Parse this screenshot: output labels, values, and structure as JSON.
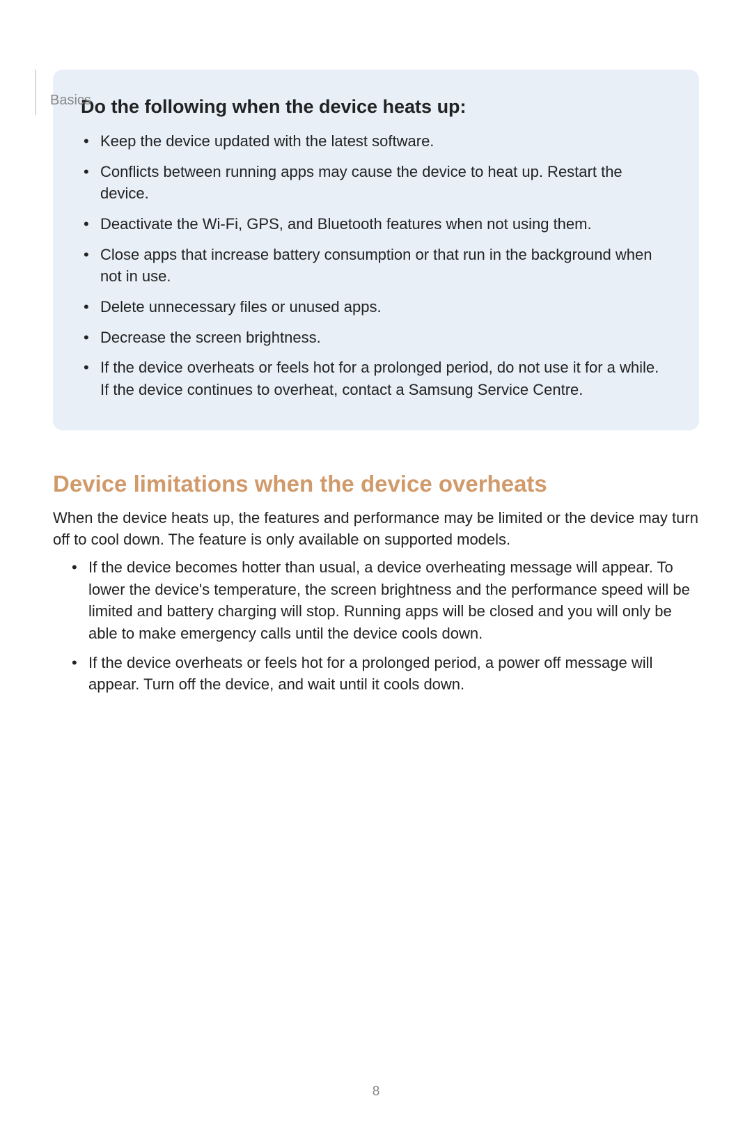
{
  "header": {
    "breadcrumb": "Basics"
  },
  "callout": {
    "heading": "Do the following when the device heats up:",
    "items": [
      "Keep the device updated with the latest software.",
      "Conflicts between running apps may cause the device to heat up. Restart the device.",
      "Deactivate the Wi-Fi, GPS, and Bluetooth features when not using them.",
      "Close apps that increase battery consumption or that run in the background when not in use.",
      "Delete unnecessary files or unused apps.",
      "Decrease the screen brightness.",
      "If the device overheats or feels hot for a prolonged period, do not use it for a while. If the device continues to overheat, contact a Samsung Service Centre."
    ],
    "background_color": "#e8eff7",
    "heading_color": "#222222",
    "text_color": "#222222"
  },
  "section": {
    "heading": "Device limitations when the device overheats",
    "heading_color": "#d19a6a",
    "paragraph": "When the device heats up, the features and performance may be limited or the device may turn off to cool down. The feature is only available on supported models.",
    "items": [
      "If the device becomes hotter than usual, a device overheating message will appear. To lower the device's temperature, the screen brightness and the performance speed will be limited and battery charging will stop. Running apps will be closed and you will only be able to make emergency calls until the device cools down.",
      "If the device overheats or feels hot for a prolonged period, a power off message will appear. Turn off the device, and wait until it cools down."
    ]
  },
  "footer": {
    "page_number": "8"
  }
}
